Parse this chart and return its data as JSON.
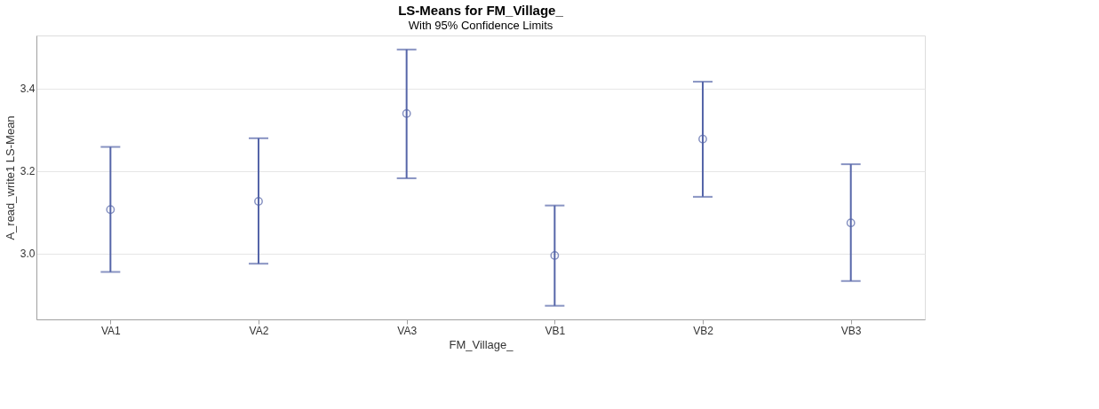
{
  "chart_data": {
    "type": "scatter",
    "title": "LS-Means for FM_Village_",
    "subtitle": "With 95% Confidence Limits",
    "xlabel": "FM_Village_",
    "ylabel": "A_read_write1 LS-Mean",
    "categories": [
      "VA1",
      "VA2",
      "VA3",
      "VB1",
      "VB2",
      "VB3"
    ],
    "values": [
      3.106,
      3.126,
      3.339,
      2.995,
      3.277,
      3.074
    ],
    "errors": [
      [
        2.955,
        3.258
      ],
      [
        2.975,
        3.279
      ],
      [
        3.182,
        3.494
      ],
      [
        2.873,
        3.116
      ],
      [
        3.137,
        3.416
      ],
      [
        2.933,
        3.216
      ]
    ],
    "color": "#5565a8",
    "marker": "circle",
    "ylim": [
      2.84,
      3.528
    ],
    "yticks": [
      {
        "value": 3.0,
        "label": "3.0"
      },
      3.2,
      3.4
    ],
    "grid": "y",
    "legend": false
  }
}
